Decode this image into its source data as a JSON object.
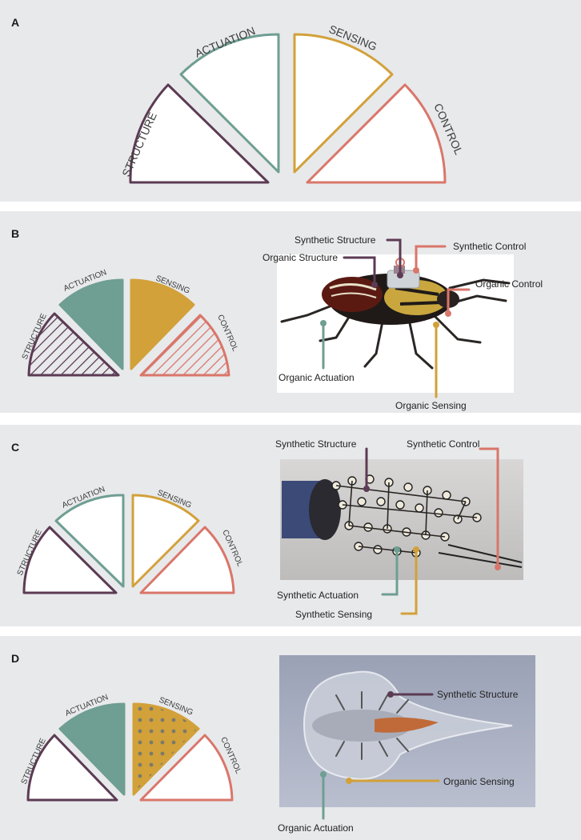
{
  "colors": {
    "structure": "#5c3b54",
    "actuation": "#6f9e93",
    "sensing": "#d2a13a",
    "control": "#d9766a",
    "panel_bg": "#e8e9eb"
  },
  "panels": [
    {
      "label": "A",
      "wedges": {
        "structure": "STRUCTURE",
        "actuation": "ACTUATION",
        "sensing": "SENSING",
        "control": "CONTROL"
      }
    },
    {
      "label": "B",
      "wedges": {
        "structure": "STRUCTURE",
        "actuation": "ACTUATION",
        "sensing": "SENSING",
        "control": "CONTROL"
      },
      "callouts": {
        "synthetic_structure": "Synthetic Structure",
        "synthetic_control": "Synthetic Control",
        "organic_structure": "Organic Structure",
        "organic_control": "Organic Control",
        "organic_actuation": "Organic Actuation",
        "organic_sensing": "Organic Sensing"
      }
    },
    {
      "label": "C",
      "wedges": {
        "structure": "STRUCTURE",
        "actuation": "ACTUATION",
        "sensing": "SENSING",
        "control": "CONTROL"
      },
      "callouts": {
        "synthetic_structure": "Synthetic Structure",
        "synthetic_control": "Synthetic Control",
        "synthetic_actuation": "Synthetic Actuation",
        "synthetic_sensing": "Synthetic Sensing"
      }
    },
    {
      "label": "D",
      "wedges": {
        "structure": "STRUCTURE",
        "actuation": "ACTUATION",
        "sensing": "SENSING",
        "control": "CONTROL"
      },
      "callouts": {
        "synthetic_structure": "Synthetic Structure",
        "organic_sensing": "Organic Sensing",
        "organic_actuation": "Organic Actuation"
      }
    }
  ]
}
